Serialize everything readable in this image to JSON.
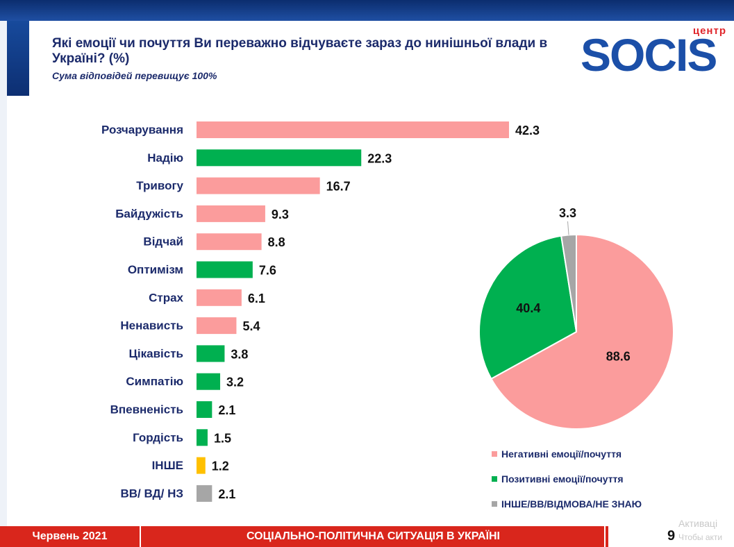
{
  "header": {
    "title": "Які емоції чи почуття Ви переважно відчуваєте зараз до нинішньої влади в Україні? (%)",
    "subtitle": "Сума відповідей перевищує 100%"
  },
  "logo": {
    "small": "центр",
    "main": "SOCIS"
  },
  "colors": {
    "negative": "#fb9c9c",
    "positive": "#00b050",
    "other": "#ffc000",
    "dk": "#a6a6a6",
    "pie_other": "#a6a6a6"
  },
  "chart_data": [
    {
      "type": "bar",
      "orientation": "horizontal",
      "categories": [
        "Розчарування",
        "Надію",
        "Тривогу",
        "Байдужість",
        "Відчай",
        "Оптимізм",
        "Страх",
        "Ненависть",
        "Цікавість",
        "Симпатію",
        "Впевненість",
        "Гордість",
        "ІНШЕ",
        "ВВ/ ВД/ НЗ"
      ],
      "values": [
        42.3,
        22.3,
        16.7,
        9.3,
        8.8,
        7.6,
        6.1,
        5.4,
        3.8,
        3.2,
        2.1,
        1.5,
        1.2,
        2.1
      ],
      "groups": [
        "negative",
        "positive",
        "negative",
        "negative",
        "negative",
        "positive",
        "negative",
        "negative",
        "positive",
        "positive",
        "positive",
        "positive",
        "other",
        "dk"
      ],
      "xlim": [
        0,
        42.3
      ],
      "grid": false,
      "legend": false
    },
    {
      "type": "pie",
      "labels": [
        "Негативні емоції/почуття",
        "Позитивні емоції/почуття",
        "ІНШЕ/ВВ/ВІДМОВА/НЕ ЗНАЮ"
      ],
      "values": [
        88.6,
        40.4,
        3.3
      ],
      "value_labels": [
        "88.6",
        "40.4",
        "3.3"
      ],
      "legend": "bottom"
    }
  ],
  "footer": {
    "date": "Червень 2021",
    "title": "СОЦІАЛЬНО-ПОЛІТИЧНА СИТУАЦІЯ В УКРАЇНІ",
    "page": "9",
    "watermark_line1": "Активаці",
    "watermark_line2": "Чтобы акти"
  }
}
